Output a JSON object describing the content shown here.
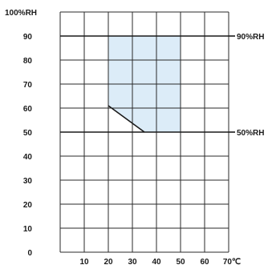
{
  "chart_data": {
    "type": "area",
    "title": "",
    "xlabel": "",
    "ylabel": "",
    "x_axis": {
      "range": [
        0,
        70
      ],
      "ticks": [
        10,
        20,
        30,
        40,
        50,
        60,
        70
      ],
      "tick_labels": [
        "10",
        "20",
        "30",
        "40",
        "50",
        "60",
        "70℃"
      ]
    },
    "y_axis": {
      "range": [
        0,
        100
      ],
      "ticks": [
        0,
        10,
        20,
        30,
        40,
        50,
        60,
        70,
        80,
        90,
        100
      ],
      "tick_labels": [
        "0",
        "10",
        "20",
        "30",
        "40",
        "50",
        "60",
        "70",
        "80",
        "90",
        "100%RH"
      ]
    },
    "grid": true,
    "region": {
      "fill": "#dcecf8",
      "edge_color": "#1a1a1a",
      "points": [
        [
          20,
          90
        ],
        [
          50,
          90
        ],
        [
          50,
          50
        ],
        [
          35,
          50
        ],
        [
          20,
          61
        ]
      ]
    },
    "reference_lines": [
      {
        "y": 90,
        "label": "90%RH"
      },
      {
        "y": 50,
        "label": "50%RH"
      }
    ],
    "colors": {
      "grid": "#2a2a2a",
      "text": "#1a1a1a"
    }
  }
}
